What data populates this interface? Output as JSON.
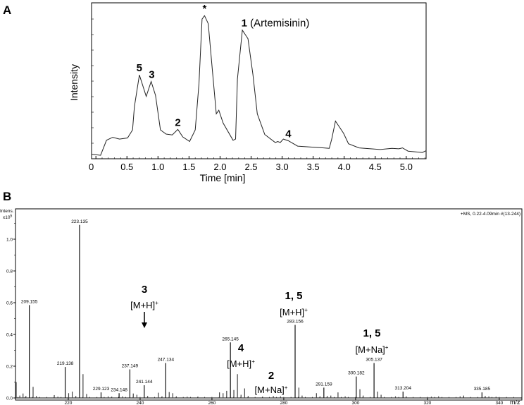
{
  "chart_data": [
    {
      "panel": "A",
      "type": "line",
      "xlabel": "Time [min]",
      "ylabel": "Intensity",
      "xlim": [
        -0.07,
        5.32
      ],
      "ylim": [
        0,
        100
      ],
      "xticks": [
        "0",
        "0.5",
        "1.0",
        "1.5",
        "2.0",
        "2.5",
        "3.0",
        "3.5",
        "4.0",
        "4.5",
        "5.0"
      ],
      "grid": false,
      "series": [
        {
          "x": [
            -0.076,
            0.075,
            0.17,
            0.27,
            0.38,
            0.51,
            0.59,
            0.62,
            0.7,
            0.81,
            0.89,
            0.96,
            1.04,
            1.13,
            1.23,
            1.32,
            1.4,
            1.51,
            1.6,
            1.66,
            1.71,
            1.75,
            1.81,
            1.88,
            1.94,
            1.98,
            2.05,
            2.21,
            2.25,
            2.28,
            2.36,
            2.45,
            2.53,
            2.6,
            2.72,
            2.89,
            2.93,
            2.97,
            3.02,
            3.1,
            3.25,
            3.63,
            3.76,
            3.8,
            3.86,
            3.99,
            4.07,
            4.24,
            4.58,
            4.77,
            4.88,
            4.94,
            5.03,
            5.26,
            5.32
          ],
          "y": [
            3.1,
            2.3,
            12.4,
            14.4,
            13.2,
            14,
            19.4,
            34.9,
            56.3,
            41.9,
            51.9,
            42.6,
            19.4,
            16.6,
            16,
            19.7,
            14.7,
            11.6,
            19.4,
            50.4,
            93.8,
            96.1,
            90.7,
            58.1,
            30.2,
            32.6,
            24,
            12.4,
            13.2,
            53.5,
            86.4,
            80.6,
            56.6,
            30.2,
            16.3,
            10.9,
            11.6,
            10.9,
            13.2,
            12.1,
            8.5,
            7.4,
            7,
            13.2,
            25.3,
            17.1,
            10.1,
            7.3,
            6.2,
            7,
            6.7,
            7.3,
            5.1,
            4.2,
            5.4
          ]
        }
      ],
      "annotations": [
        {
          "text": "5",
          "x": 0.7,
          "y": 56.3
        },
        {
          "text": "3",
          "x": 0.9,
          "y": 51.9
        },
        {
          "text": "2",
          "x": 1.32,
          "y": 19.7
        },
        {
          "text": "*",
          "x": 1.75,
          "y": 96.1
        },
        {
          "text": "1",
          "suffix": "(Artemisinin)",
          "x": 2.4,
          "y": 86.4
        },
        {
          "text": "4",
          "x": 3.1,
          "y": 12.1
        }
      ]
    },
    {
      "panel": "B",
      "type": "bar",
      "xlabel": "m/z",
      "ylabel": "Intens.",
      "yunit": "x10",
      "yunit_exp": "5",
      "info": "+MS, 0.22-4.09min #(13-244)",
      "xlim": [
        205.3,
        346.3
      ],
      "ylim": [
        0,
        1.19
      ],
      "xticks": [
        220,
        240,
        260,
        280,
        300,
        320,
        340
      ],
      "yticks": [
        "0.0",
        "0.2",
        "0.4",
        "0.6",
        "0.8",
        "1.0"
      ],
      "grid": false,
      "peaks": [
        {
          "mz": 205.5,
          "i": 0.1
        },
        {
          "mz": 206.5,
          "i": 0.015
        },
        {
          "mz": 207.4,
          "i": 0.028
        },
        {
          "mz": 208.2,
          "i": 0.012
        },
        {
          "mz": 209.155,
          "i": 0.585,
          "label": "209.155"
        },
        {
          "mz": 210.2,
          "i": 0.07
        },
        {
          "mz": 211.1,
          "i": 0.012
        },
        {
          "mz": 216.1,
          "i": 0.018
        },
        {
          "mz": 217.1,
          "i": 0.008
        },
        {
          "mz": 219.138,
          "i": 0.195,
          "label": "219.138"
        },
        {
          "mz": 220.1,
          "i": 0.03
        },
        {
          "mz": 221.1,
          "i": 0.04
        },
        {
          "mz": 222.1,
          "i": 0.012
        },
        {
          "mz": 223.135,
          "i": 1.09,
          "label": "223.135"
        },
        {
          "mz": 224.1,
          "i": 0.15
        },
        {
          "mz": 225.1,
          "i": 0.025
        },
        {
          "mz": 229.123,
          "i": 0.035,
          "label": "229.123"
        },
        {
          "mz": 231.1,
          "i": 0.01
        },
        {
          "mz": 232.1,
          "i": 0.008
        },
        {
          "mz": 234.148,
          "i": 0.03,
          "label": "234.148"
        },
        {
          "mz": 235.1,
          "i": 0.01
        },
        {
          "mz": 237.149,
          "i": 0.18,
          "label": "237.149"
        },
        {
          "mz": 238.1,
          "i": 0.028
        },
        {
          "mz": 239.1,
          "i": 0.02
        },
        {
          "mz": 241.144,
          "i": 0.08,
          "label": "241.144"
        },
        {
          "mz": 242.1,
          "i": 0.012
        },
        {
          "mz": 245.1,
          "i": 0.033
        },
        {
          "mz": 246.1,
          "i": 0.01
        },
        {
          "mz": 247.134,
          "i": 0.22,
          "label": "247.134"
        },
        {
          "mz": 248.1,
          "i": 0.037
        },
        {
          "mz": 249.1,
          "i": 0.03
        },
        {
          "mz": 250.1,
          "i": 0.01
        },
        {
          "mz": 253.1,
          "i": 0.008
        },
        {
          "mz": 256.1,
          "i": 0.008
        },
        {
          "mz": 262.1,
          "i": 0.035
        },
        {
          "mz": 263.1,
          "i": 0.03
        },
        {
          "mz": 264.1,
          "i": 0.045
        },
        {
          "mz": 265.145,
          "i": 0.35,
          "label": "265.145"
        },
        {
          "mz": 266.1,
          "i": 0.05
        },
        {
          "mz": 267.1,
          "i": 0.15
        },
        {
          "mz": 268.1,
          "i": 0.02
        },
        {
          "mz": 269.1,
          "i": 0.06
        },
        {
          "mz": 270.1,
          "i": 0.012
        },
        {
          "mz": 274.1,
          "i": 0.008
        },
        {
          "mz": 277.1,
          "i": 0.012
        },
        {
          "mz": 279.1,
          "i": 0.01
        },
        {
          "mz": 283.156,
          "i": 0.46,
          "label": "283.156"
        },
        {
          "mz": 284.2,
          "i": 0.065
        },
        {
          "mz": 285.1,
          "i": 0.015
        },
        {
          "mz": 289.1,
          "i": 0.03
        },
        {
          "mz": 290.1,
          "i": 0.01
        },
        {
          "mz": 291.159,
          "i": 0.065,
          "label": "291.159"
        },
        {
          "mz": 292.1,
          "i": 0.012
        },
        {
          "mz": 293.1,
          "i": 0.015
        },
        {
          "mz": 295.1,
          "i": 0.035
        },
        {
          "mz": 297.1,
          "i": 0.01
        },
        {
          "mz": 300.182,
          "i": 0.135,
          "label": "300.182"
        },
        {
          "mz": 301.2,
          "i": 0.055
        },
        {
          "mz": 302.1,
          "i": 0.015
        },
        {
          "mz": 305.137,
          "i": 0.22,
          "label": "305.137"
        },
        {
          "mz": 306.1,
          "i": 0.04
        },
        {
          "mz": 307.1,
          "i": 0.02
        },
        {
          "mz": 311.1,
          "i": 0.01
        },
        {
          "mz": 313.204,
          "i": 0.04,
          "label": "313.204"
        },
        {
          "mz": 314.1,
          "i": 0.01
        },
        {
          "mz": 321.1,
          "i": 0.008
        },
        {
          "mz": 323.1,
          "i": 0.01
        },
        {
          "mz": 329.1,
          "i": 0.01
        },
        {
          "mz": 330.1,
          "i": 0.015
        },
        {
          "mz": 335.185,
          "i": 0.035,
          "label": "335.185"
        },
        {
          "mz": 336.1,
          "i": 0.012
        },
        {
          "mz": 337.1,
          "i": 0.01
        },
        {
          "mz": 339.1,
          "i": 0.008
        }
      ],
      "annotations": [
        {
          "compound": "3",
          "ion": "[M+H]",
          "charge": "+",
          "target_mz": 241.144
        },
        {
          "compound": "4",
          "ion": "[M+H]",
          "charge": "+",
          "target_mz": 265.145
        },
        {
          "compound": "2",
          "ion": "[M+Na]",
          "charge": "+",
          "target_mz": 277.1
        },
        {
          "compound": "1, 5",
          "ion": "[M+H]",
          "charge": "+",
          "target_mz": 283.156
        },
        {
          "compound": "1, 5",
          "ion": "[M+Na]",
          "charge": "+",
          "target_mz": 305.137
        }
      ]
    }
  ]
}
